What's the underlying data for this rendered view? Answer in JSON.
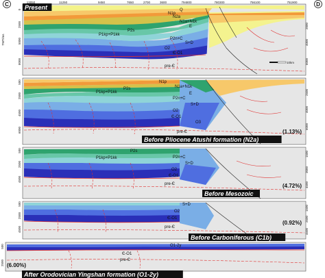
{
  "corners": {
    "left": "C",
    "right": "D"
  },
  "axis_label": "TWT/ms",
  "top_ticks": [
    "13050",
    "11250",
    "9450",
    "7650",
    "2700",
    "3600",
    "794800",
    "780300",
    "756100",
    "751900"
  ],
  "scale_bar": "10km",
  "depth_ticks": {
    "p1": [
      "0",
      "2500",
      "5000",
      "8000"
    ],
    "p1_right": [
      "2000",
      "4000",
      "6000"
    ],
    "p2": [
      "500",
      "2500",
      "4500",
      "6000"
    ],
    "p2_right": [
      "2500",
      "4000",
      "6000"
    ],
    "p3": [
      "500",
      "2500",
      "4500"
    ],
    "p3_right": [
      "1500",
      "3000",
      "4500"
    ],
    "p4": [
      "500",
      "2500",
      "4500"
    ],
    "p4_right": [
      "1500",
      "2500",
      "4500"
    ],
    "p5": [
      "500",
      "2500"
    ]
  },
  "panels": [
    {
      "caption": "Present",
      "percent": "",
      "labels": [
        "Q",
        "N2a",
        "N1a+N1k",
        "N1p",
        "E",
        "P2s",
        "P1kp+P1kk",
        "P2n+C",
        "S+D",
        "O2",
        "Є-O1",
        "pre-Є"
      ]
    },
    {
      "caption": "Before Pliocene Atushi formation (N2a)",
      "percent": "(1.13%)",
      "labels": [
        "N1p",
        "N1a+N1k",
        "E",
        "P2s",
        "P1kp+P1kk",
        "P2n+C",
        "S+D",
        "O2",
        "Є-O1",
        "O3",
        "pre-Є"
      ]
    },
    {
      "caption": "Before Mesozoic",
      "percent": "(4.72%)",
      "labels": [
        "P2s",
        "P1kp+P1kk",
        "P2n+C",
        "S+D",
        "O2",
        "Є-O1",
        "pre-Є"
      ]
    },
    {
      "caption": "Before Carboniferous (C1b)",
      "percent": "(0.92%)",
      "labels": [
        "S+D",
        "O2",
        "Є-O1",
        "pre-Є"
      ]
    },
    {
      "caption": "After Orodovician Yingshan formation (O1-2y)",
      "percent": "(6.00%)",
      "labels": [
        "O1-2y",
        "Є-O1",
        "pre-Є"
      ]
    }
  ],
  "colors": {
    "Q": "#f4f38a",
    "N2a": "#f7c86a",
    "N1": "#f29a3a",
    "E": "#d4c24a",
    "P": "#2fa36e",
    "C": "#68c7a8",
    "SD": "#8fd4d8",
    "O2": "#7aaee6",
    "O1": "#4f6ee0",
    "Cam": "#2a2fb8",
    "red": "#e0302f",
    "base": "#e6e6e6"
  }
}
